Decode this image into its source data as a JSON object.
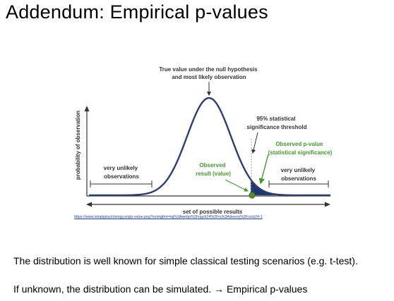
{
  "slide": {
    "title": "Addendum: Empirical p-values",
    "paragraph_1": "The distribution is well known for simple classical testing scenarios (e.g. t-test).",
    "paragraph_2": "If unknown, the distribution can be simulated. → Empirical p-values"
  },
  "diagram": {
    "top_label": [
      "True value under the null hypothesis",
      "and most likely observation"
    ],
    "threshold_label": [
      "95% statistical",
      "significance threshold"
    ],
    "pvalue_label": [
      "Observed p-value",
      "(statistical significance)"
    ],
    "observed_label": [
      "Observed",
      "result (value)"
    ],
    "left_tail_label": [
      "very unlikely",
      "observations"
    ],
    "right_tail_label": [
      "very unlikely",
      "observations"
    ],
    "y_axis_label": "probability of observation",
    "x_axis_label": "set of possible results",
    "source_url": "https://www.simplypsychology.org/p-value.png?ezimgfmt=ng%3Awebp%2Fngcb24%2Frs%3Adevice%2Frscb24-1"
  },
  "colors": {
    "curve": "#2b3f73",
    "tail_fill": "#1f3a73",
    "green": "#3f9a2a",
    "observed_dot": "#5a8a2a"
  }
}
